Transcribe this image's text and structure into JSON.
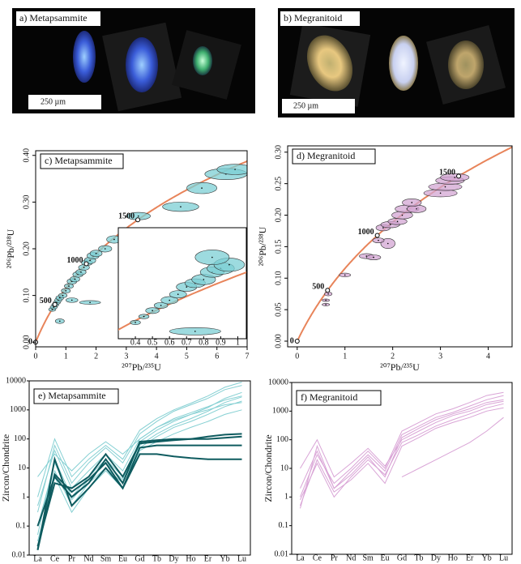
{
  "images": [
    {
      "label": "a) Metapsammite",
      "scale": "250 µm"
    },
    {
      "label": "b) Megranitoid",
      "scale": "250 µm"
    }
  ],
  "chart_data": [
    {
      "type": "concordia",
      "label": "c) Metapsammite",
      "x_label": "²⁰⁷Pb/²³⁵U",
      "y_label": "²⁰⁶Pb/²³⁸U",
      "xlim": [
        0,
        7
      ],
      "ylim": [
        -0.01,
        0.41
      ],
      "xticks": [
        0,
        1,
        2,
        3,
        4,
        5,
        6,
        7
      ],
      "yticks": [
        {
          "value": 0,
          "label": "0.00"
        },
        {
          "value": 0.1,
          "label": "0.10"
        },
        {
          "value": 0.2,
          "label": "0.20"
        },
        {
          "value": 0.3,
          "label": "0.30"
        },
        {
          "value": 0.4,
          "label": "0.40"
        }
      ],
      "age_labels": [
        0,
        500,
        1000,
        1500
      ],
      "curve_color": "#e8845a",
      "color": "#7ccfd4",
      "x": [
        0.55,
        0.6,
        0.65,
        0.7,
        0.75,
        0.8,
        0.9,
        1.0,
        1.1,
        1.2,
        1.3,
        1.4,
        1.5,
        1.6,
        1.7,
        1.8,
        1.9,
        2.0,
        2.3,
        2.6,
        1.2,
        1.8,
        0.8,
        3.4,
        4.8,
        5.5,
        6.3,
        6.6
      ],
      "values": [
        0.07,
        0.075,
        0.08,
        0.085,
        0.09,
        0.095,
        0.1,
        0.11,
        0.12,
        0.13,
        0.135,
        0.145,
        0.15,
        0.16,
        0.17,
        0.175,
        0.185,
        0.19,
        0.2,
        0.22,
        0.09,
        0.085,
        0.045,
        0.27,
        0.29,
        0.33,
        0.36,
        0.37
      ],
      "x_err": [
        0.12,
        0.12,
        0.12,
        0.12,
        0.12,
        0.13,
        0.14,
        0.15,
        0.15,
        0.16,
        0.16,
        0.17,
        0.17,
        0.18,
        0.18,
        0.19,
        0.2,
        0.2,
        0.22,
        0.25,
        0.2,
        0.35,
        0.15,
        0.4,
        0.6,
        0.5,
        0.7,
        0.6
      ],
      "y_err": [
        0.004,
        0.004,
        0.004,
        0.004,
        0.005,
        0.005,
        0.005,
        0.005,
        0.005,
        0.006,
        0.006,
        0.006,
        0.006,
        0.006,
        0.006,
        0.007,
        0.007,
        0.007,
        0.007,
        0.008,
        0.005,
        0.004,
        0.005,
        0.008,
        0.01,
        0.012,
        0.012,
        0.011
      ],
      "inset": {
        "xlim": [
          0.3,
          1.05
        ],
        "ylim": [
          0.03,
          0.18
        ],
        "xticks": [
          0.4,
          0.5,
          0.6,
          0.7,
          0.8,
          0.9,
          1.0
        ],
        "x": [
          0.4,
          0.45,
          0.5,
          0.55,
          0.6,
          0.65,
          0.7,
          0.75,
          0.8,
          0.85,
          0.9,
          0.95,
          0.75,
          0.85
        ],
        "values": [
          0.052,
          0.06,
          0.068,
          0.075,
          0.082,
          0.09,
          0.1,
          0.105,
          0.11,
          0.12,
          0.125,
          0.13,
          0.04,
          0.14
        ],
        "x_err": [
          0.03,
          0.03,
          0.04,
          0.04,
          0.05,
          0.05,
          0.06,
          0.06,
          0.07,
          0.07,
          0.08,
          0.09,
          0.15,
          0.1
        ],
        "y_err": [
          0.003,
          0.003,
          0.004,
          0.004,
          0.005,
          0.005,
          0.006,
          0.006,
          0.007,
          0.007,
          0.008,
          0.009,
          0.005,
          0.01
        ]
      }
    },
    {
      "type": "concordia",
      "label": "d) Megranitoid",
      "x_label": "²⁰⁷Pb/²³⁵U",
      "y_label": "²⁰⁶Pb/²³⁸U",
      "xlim": [
        -0.2,
        4.5
      ],
      "ylim": [
        -0.009,
        0.31
      ],
      "xticks": [
        0,
        1,
        2,
        3,
        4
      ],
      "yticks": [
        {
          "value": 0,
          "label": "0.00"
        },
        {
          "value": 0.05,
          "label": "0.05"
        },
        {
          "value": 0.1,
          "label": "0.10"
        },
        {
          "value": 0.15,
          "label": "0.15"
        },
        {
          "value": 0.2,
          "label": "0.20"
        },
        {
          "value": 0.25,
          "label": "0.25"
        },
        {
          "value": 0.3,
          "label": "0.30"
        }
      ],
      "age_labels": [
        0,
        500,
        1000,
        1500
      ],
      "curve_color": "#e8845a",
      "color": "#d3a6d3",
      "x": [
        0.6,
        0.6,
        0.65,
        1.0,
        1.45,
        1.6,
        1.9,
        1.7,
        1.8,
        1.95,
        2.1,
        2.2,
        2.3,
        2.5,
        2.4,
        3.0,
        3.1,
        3.2,
        3.3
      ],
      "values": [
        0.058,
        0.065,
        0.075,
        0.105,
        0.135,
        0.133,
        0.155,
        0.16,
        0.18,
        0.185,
        0.19,
        0.2,
        0.21,
        0.21,
        0.22,
        0.235,
        0.245,
        0.255,
        0.26
      ],
      "x_err": [
        0.08,
        0.08,
        0.08,
        0.12,
        0.15,
        0.15,
        0.15,
        0.12,
        0.15,
        0.2,
        0.2,
        0.22,
        0.25,
        0.2,
        0.2,
        0.35,
        0.35,
        0.3,
        0.3
      ],
      "y_err": [
        0.002,
        0.002,
        0.003,
        0.003,
        0.004,
        0.004,
        0.008,
        0.004,
        0.005,
        0.005,
        0.005,
        0.006,
        0.006,
        0.006,
        0.006,
        0.006,
        0.006,
        0.006,
        0.006
      ]
    },
    {
      "type": "line",
      "label": "e) Metapsammite",
      "y_label": "Zircon/Chondrite",
      "log_scale": true,
      "categories": [
        "La",
        "Ce",
        "Pr",
        "Nd",
        "Sm",
        "Eu",
        "Gd",
        "Tb",
        "Dy",
        "Ho",
        "Er",
        "Yb",
        "Lu"
      ],
      "ylim": [
        0.01,
        10000
      ],
      "yticks": [
        0.01,
        0.1,
        1,
        10,
        100,
        1000,
        10000
      ],
      "series": [
        {
          "color": "#86d0d3",
          "values": [
            0.05,
            20,
            1,
            5,
            20,
            5,
            80,
            200,
            400,
            700,
            1200,
            2500,
            4000
          ]
        },
        {
          "color": "#86d0d3",
          "values": [
            0.3,
            60,
            3,
            15,
            50,
            15,
            150,
            400,
            900,
            1500,
            2500,
            5000,
            7000
          ]
        },
        {
          "color": "#86d0d3",
          "values": [
            0.02,
            8,
            0.5,
            3,
            10,
            3,
            50,
            120,
            250,
            400,
            700,
            1300,
            2000
          ]
        },
        {
          "color": "#86d0d3",
          "values": [
            1,
            100,
            5,
            20,
            60,
            20,
            200,
            500,
            1000,
            1700,
            3000,
            6000,
            9000
          ]
        },
        {
          "color": "#86d0d3",
          "values": [
            0.1,
            15,
            0.8,
            4,
            15,
            4,
            60,
            150,
            300,
            500,
            900,
            1800,
            2800
          ]
        },
        {
          "color": "#86d0d3",
          "values": [
            5,
            30,
            8,
            30,
            80,
            30,
            100,
            250,
            500,
            800,
            1300,
            2200,
            3000
          ]
        },
        {
          "color": "#86d0d3",
          "values": [
            0.5,
            40,
            2,
            8,
            30,
            8,
            100,
            250,
            450,
            700,
            1000,
            1500,
            1800
          ]
        },
        {
          "color": "#86d0d3",
          "values": [
            0.03,
            5,
            0.3,
            2,
            8,
            2,
            40,
            80,
            150,
            250,
            400,
            700,
            1000
          ]
        },
        {
          "color": "#0e5b5f",
          "values": [
            0.1,
            5,
            1,
            3,
            20,
            3,
            80,
            90,
            100,
            100,
            100,
            110,
            120
          ]
        },
        {
          "color": "#0e5b5f",
          "values": [
            0.015,
            20,
            0.5,
            2,
            10,
            2,
            50,
            60,
            60,
            60,
            60,
            60,
            60
          ]
        },
        {
          "color": "#0e5b5f",
          "values": [
            0.02,
            3,
            2,
            5,
            30,
            5,
            70,
            80,
            90,
            100,
            120,
            140,
            150
          ]
        },
        {
          "color": "#0e5b5f",
          "values": [
            0.015,
            6,
            1.5,
            4,
            15,
            2,
            30,
            30,
            25,
            22,
            20,
            20,
            20
          ]
        }
      ]
    },
    {
      "type": "line",
      "label": "f) Megranitoid",
      "y_label": "Zircon/Chondrite",
      "log_scale": true,
      "categories": [
        "La",
        "Ce",
        "Pr",
        "Nd",
        "Sm",
        "Eu",
        "Gd",
        "Tb",
        "Dy",
        "Ho",
        "Er",
        "Yb",
        "Lu"
      ],
      "ylim": [
        0.01,
        10000
      ],
      "yticks": [
        0.01,
        0.1,
        1,
        10,
        100,
        1000,
        10000
      ],
      "series": [
        {
          "color": "#d9a4d6",
          "values": [
            0.4,
            60,
            2,
            8,
            30,
            8,
            150,
            300,
            600,
            900,
            1500,
            2500,
            3500
          ]
        },
        {
          "color": "#d9a4d6",
          "values": [
            1,
            30,
            3,
            10,
            40,
            10,
            200,
            400,
            800,
            1200,
            2000,
            3500,
            4500
          ]
        },
        {
          "color": "#d9a4d6",
          "values": [
            10,
            100,
            5,
            15,
            50,
            12,
            100,
            200,
            400,
            700,
            1000,
            1700,
            2200
          ]
        },
        {
          "color": "#d9a4d6",
          "values": [
            0.8,
            15,
            1,
            5,
            20,
            6,
            80,
            150,
            300,
            500,
            800,
            1300,
            1800
          ]
        },
        {
          "color": "#d9a4d6",
          "values": [
            2,
            40,
            2,
            6,
            25,
            5,
            120,
            250,
            500,
            800,
            1200,
            2000,
            2500
          ]
        },
        {
          "color": "#d9a4d6",
          "values": [
            0.5,
            20,
            1.5,
            4,
            15,
            3,
            60,
            120,
            250,
            400,
            600,
            1000,
            1300
          ]
        },
        {
          "color": "#d9a4d6",
          "values": [
            null,
            null,
            null,
            null,
            null,
            null,
            5,
            10,
            20,
            40,
            80,
            200,
            600
          ]
        }
      ]
    }
  ]
}
